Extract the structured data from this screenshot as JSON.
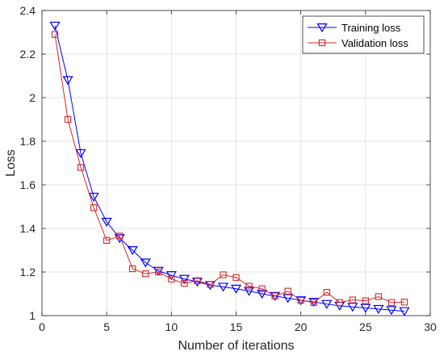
{
  "chart_data": {
    "type": "line",
    "xlabel": "Number of iterations",
    "ylabel": "Loss",
    "xlim": [
      0,
      30
    ],
    "ylim": [
      1,
      2.4
    ],
    "xticks": [
      0,
      5,
      10,
      15,
      20,
      25,
      30
    ],
    "yticks": [
      1,
      1.2,
      1.4,
      1.6,
      1.8,
      2,
      2.2,
      2.4
    ],
    "xtick_labels": [
      "0",
      "5",
      "10",
      "15",
      "20",
      "25",
      "30"
    ],
    "ytick_labels": [
      "1",
      "1.2",
      "1.4",
      "1.6",
      "1.8",
      "2",
      "2.2",
      "2.4"
    ],
    "grid": true,
    "legend_position": "top-right",
    "x": [
      1,
      2,
      3,
      4,
      5,
      6,
      7,
      8,
      9,
      10,
      11,
      12,
      13,
      14,
      15,
      16,
      17,
      18,
      19,
      20,
      21,
      22,
      23,
      24,
      25,
      26,
      27,
      28
    ],
    "series": [
      {
        "name": "Training loss",
        "color": "#0000ff",
        "marker": "triangle-down",
        "values": [
          2.33,
          2.08,
          1.745,
          1.545,
          1.43,
          1.355,
          1.3,
          1.243,
          1.205,
          1.185,
          1.168,
          1.155,
          1.14,
          1.132,
          1.123,
          1.113,
          1.1,
          1.09,
          1.08,
          1.07,
          1.063,
          1.053,
          1.045,
          1.04,
          1.035,
          1.03,
          1.025,
          1.02
        ]
      },
      {
        "name": "Validation loss",
        "color": "#d62728",
        "marker": "square",
        "values": [
          2.29,
          1.9,
          1.68,
          1.495,
          1.345,
          1.365,
          1.215,
          1.192,
          1.2,
          1.168,
          1.148,
          1.16,
          1.143,
          1.187,
          1.175,
          1.135,
          1.123,
          1.09,
          1.112,
          1.07,
          1.06,
          1.107,
          1.06,
          1.072,
          1.068,
          1.087,
          1.06,
          1.062
        ]
      }
    ]
  }
}
